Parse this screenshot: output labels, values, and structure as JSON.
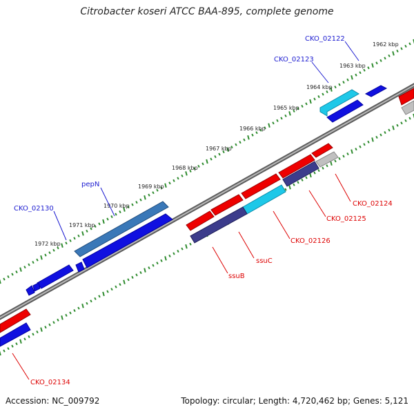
{
  "title": "Citrobacter koseri ATCC BAA-895, complete genome",
  "accession": "Accession: NC_009792",
  "summary": "Topology: circular; Length: 4,720,462 bp; Genes: 5,121",
  "colors": {
    "backbone": "#8a8a8a",
    "tick": "#2e8b2e",
    "forward_cds": "#1010e0",
    "forward_rna": "#3a78b8",
    "reverse_cds": "#ee0000",
    "reverse_other": "#3c3c8c",
    "cyan_gene": "#1ec8e8",
    "pseudo": "#c0c0c0",
    "label_forward": "#1a1ad0",
    "label_reverse": "#dd0000"
  },
  "kbp_labels": [
    "1962 kbp",
    "1963 kbp",
    "1964 kbp",
    "1965 kbp",
    "1966 kbp",
    "1967 kbp",
    "1968 kbp",
    "1969 kbp",
    "1970 kbp",
    "1971 kbp",
    "1972 kbp"
  ],
  "gene_labels_forward": [
    "CKO_02122",
    "CKO_02123",
    "pepN",
    "CKO_02130"
  ],
  "gene_labels_reverse": [
    "CKO_02124",
    "CKO_02125",
    "CKO_02126",
    "ssuC",
    "ssuB",
    "CKO_02134"
  ]
}
